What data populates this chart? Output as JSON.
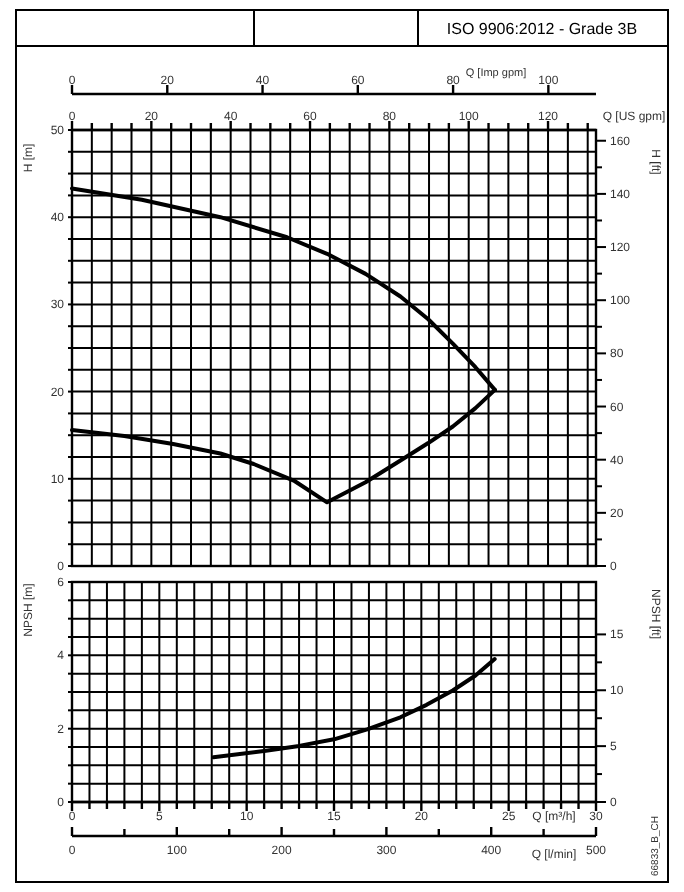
{
  "chart_data": [
    {
      "type": "line",
      "title": "ISO 9906:2012 - Grade 3B",
      "ylabel": "H [m]",
      "y2label": "H [ft]",
      "xlabel": "Q [US gpm]",
      "x2label": "Q [Imp gpm]",
      "grid": true,
      "xlim": [
        0,
        132.09
      ],
      "xticks": [
        0,
        {
          "value": 5,
          "label": null
        },
        {
          "value": 10,
          "label": null
        },
        {
          "value": 15,
          "label": null
        },
        20,
        {
          "value": 25,
          "label": null
        },
        {
          "value": 30,
          "label": null
        },
        {
          "value": 35,
          "label": null
        },
        40,
        {
          "value": 45,
          "label": null
        },
        {
          "value": 50,
          "label": null
        },
        {
          "value": 55,
          "label": null
        },
        60,
        {
          "value": 65,
          "label": null
        },
        {
          "value": 70,
          "label": null
        },
        {
          "value": 75,
          "label": null
        },
        80,
        {
          "value": 85,
          "label": null
        },
        {
          "value": 90,
          "label": null
        },
        {
          "value": 95,
          "label": null
        },
        100,
        {
          "value": 105,
          "label": null
        },
        {
          "value": 110,
          "label": null
        },
        {
          "value": 115,
          "label": null
        },
        120,
        {
          "value": 125,
          "label": null
        },
        {
          "value": 130,
          "label": null
        }
      ],
      "ylim": [
        0,
        50
      ],
      "yticks": [
        0,
        {
          "value": 2.5,
          "label": null
        },
        {
          "value": 5,
          "label": null
        },
        {
          "value": 7.5,
          "label": null
        },
        10,
        {
          "value": 12.5,
          "label": null
        },
        {
          "value": 15,
          "label": null
        },
        {
          "value": 17.5,
          "label": null
        },
        20,
        {
          "value": 22.5,
          "label": null
        },
        {
          "value": 25,
          "label": null
        },
        {
          "value": 27.5,
          "label": null
        },
        30,
        {
          "value": 32.5,
          "label": null
        },
        {
          "value": 35,
          "label": null
        },
        {
          "value": 37.5,
          "label": null
        },
        40,
        {
          "value": 42.5,
          "label": null
        },
        {
          "value": 45,
          "label": null
        },
        {
          "value": 47.5,
          "label": null
        },
        50
      ],
      "y2lim": [
        0,
        164.04
      ],
      "y2ticks": [
        0,
        {
          "value": 10,
          "label": null
        },
        20,
        {
          "value": 30,
          "label": null
        },
        40,
        {
          "value": 50,
          "label": null
        },
        60,
        {
          "value": 70,
          "label": null
        },
        80,
        {
          "value": 90,
          "label": null
        },
        100,
        {
          "value": 110,
          "label": null
        },
        120,
        {
          "value": 130,
          "label": null
        },
        140,
        {
          "value": 150,
          "label": null
        },
        160
      ],
      "x2lim": [
        0,
        110.0
      ],
      "x2ticks": [
        0,
        20,
        40,
        60,
        80,
        100
      ],
      "series": [
        {
          "color": "#000000",
          "x": [
            0,
            17.6,
            37.4,
            54.2,
            64.3,
            74.0,
            82.8,
            89.8,
            96.0,
            101.7,
            106.6
          ],
          "values": [
            43.3,
            42.0,
            40.0,
            37.7,
            35.8,
            33.5,
            30.9,
            28.3,
            25.5,
            22.8,
            20.2
          ]
        },
        {
          "color": "#000000",
          "x": [
            0,
            13.2,
            25.5,
            37.4,
            45.8,
            55.9,
            64.3,
            74.0,
            82.8,
            89.8,
            96.0,
            101.7,
            106.6
          ],
          "values": [
            15.6,
            14.9,
            14.0,
            12.9,
            11.7,
            9.8,
            7.3,
            9.6,
            12.1,
            14.1,
            16.0,
            18.1,
            20.2
          ]
        }
      ]
    },
    {
      "type": "line",
      "ylabel": "NPSH [m]",
      "y2label": "NPSH [ft]",
      "xlabel": "Q [m³/h]",
      "x2label": "Q [l/min]",
      "grid": true,
      "annotations": [
        "66833_B_CH"
      ],
      "xlim": [
        0,
        30
      ],
      "xticks": [
        0,
        {
          "value": 1,
          "label": null
        },
        {
          "value": 2,
          "label": null
        },
        {
          "value": 3,
          "label": null
        },
        {
          "value": 4,
          "label": null
        },
        5,
        {
          "value": 6,
          "label": null
        },
        {
          "value": 7,
          "label": null
        },
        {
          "value": 8,
          "label": null
        },
        {
          "value": 9,
          "label": null
        },
        10,
        {
          "value": 11,
          "label": null
        },
        {
          "value": 12,
          "label": null
        },
        {
          "value": 13,
          "label": null
        },
        {
          "value": 14,
          "label": null
        },
        15,
        {
          "value": 16,
          "label": null
        },
        {
          "value": 17,
          "label": null
        },
        {
          "value": 18,
          "label": null
        },
        {
          "value": 19,
          "label": null
        },
        20,
        {
          "value": 21,
          "label": null
        },
        {
          "value": 22,
          "label": null
        },
        {
          "value": 23,
          "label": null
        },
        {
          "value": 24,
          "label": null
        },
        25,
        {
          "value": 26,
          "label": null
        },
        {
          "value": 27,
          "label": null
        },
        {
          "value": 28,
          "label": null
        },
        {
          "value": 29,
          "label": null
        },
        30
      ],
      "ylim": [
        0,
        6
      ],
      "yticks": [
        0,
        {
          "value": 0.5,
          "label": null
        },
        {
          "value": 1,
          "label": null
        },
        {
          "value": 1.5,
          "label": null
        },
        2,
        {
          "value": 2.5,
          "label": null
        },
        {
          "value": 3,
          "label": null
        },
        {
          "value": 3.5,
          "label": null
        },
        4,
        {
          "value": 4.5,
          "label": null
        },
        {
          "value": 5,
          "label": null
        },
        {
          "value": 5.5,
          "label": null
        },
        6
      ],
      "y2lim": [
        0,
        19.69
      ],
      "y2ticks": [
        0,
        {
          "value": 2.5,
          "label": null
        },
        5,
        {
          "value": 7.5,
          "label": null
        },
        10,
        {
          "value": 12.5,
          "label": null
        },
        15
      ],
      "x2lim": [
        0,
        500
      ],
      "x2ticks": [
        0,
        {
          "value": 50,
          "label": null
        },
        100,
        {
          "value": 150,
          "label": null
        },
        200,
        {
          "value": 250,
          "label": null
        },
        300,
        {
          "value": 350,
          "label": null
        },
        400,
        {
          "value": 450,
          "label": null
        },
        500
      ],
      "series": [
        {
          "color": "#000000",
          "x": [
            8.1,
            11.1,
            13,
            15.0,
            16.9,
            18.8,
            20.3,
            21.8,
            23.1,
            24.2
          ],
          "values": [
            1.22,
            1.4,
            1.53,
            1.71,
            1.98,
            2.31,
            2.65,
            3.04,
            3.45,
            3.9
          ]
        }
      ]
    }
  ]
}
